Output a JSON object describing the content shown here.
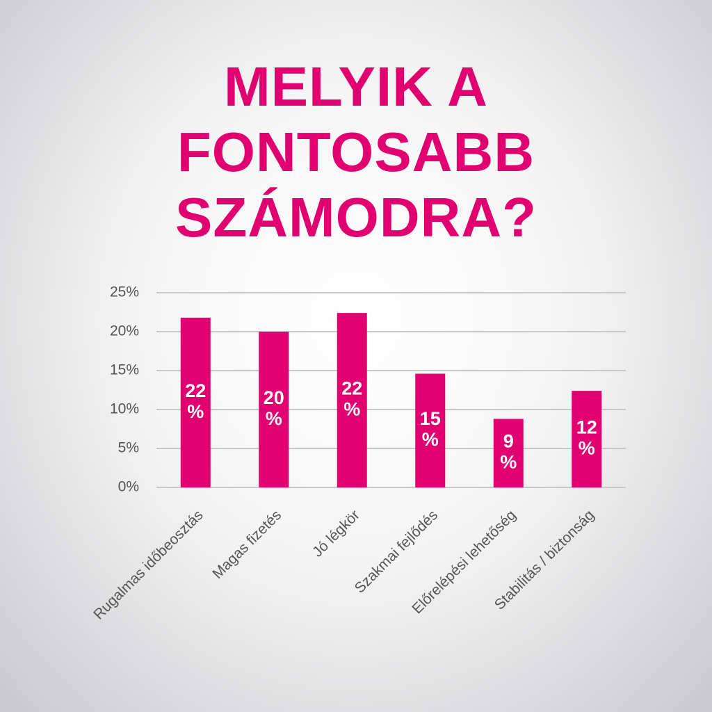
{
  "chart_data": {
    "type": "bar",
    "title": "MELYIK A FONTOSABB SZÁMODRA?",
    "categories": [
      "Rugalmas időbeosztás",
      "Magas fizetés",
      "Jó légkör",
      "Szakmai fejlődés",
      "Előrelépési lehetőség",
      "Stabilitás / biztonság"
    ],
    "values": [
      21.8,
      20.0,
      22.4,
      14.6,
      8.8,
      12.4
    ],
    "value_labels": [
      "22 %",
      "20 %",
      "22 %",
      "15 %",
      "9 %",
      "12 %"
    ],
    "color": "#e0006f",
    "ylim": [
      0,
      25
    ],
    "yticks": [
      {
        "value": 0,
        "label": "0%"
      },
      {
        "value": 5,
        "label": "5%"
      },
      {
        "value": 10,
        "label": "10%"
      },
      {
        "value": 15,
        "label": "15%"
      },
      {
        "value": 20,
        "label": "20%"
      },
      {
        "value": 25,
        "label": "25%"
      }
    ],
    "grid": true
  }
}
